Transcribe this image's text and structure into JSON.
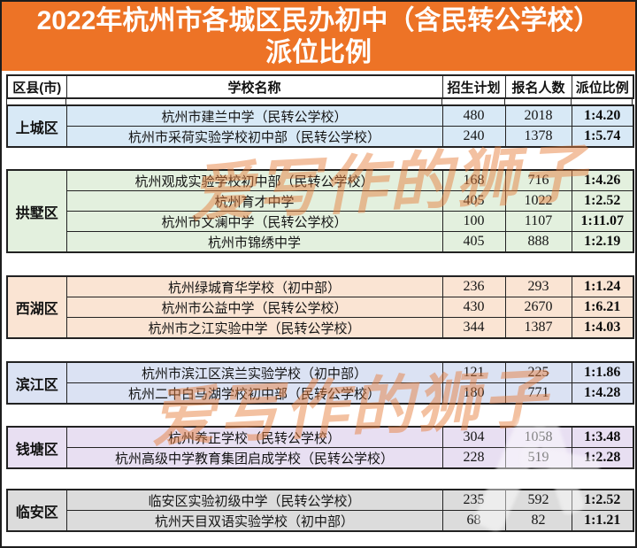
{
  "title": {
    "line1": "2022年杭州市各城区民办初中（含民转公学校）",
    "line2": "派位比例"
  },
  "colors": {
    "banner_orange": "#ED7326",
    "table_border": "#222222",
    "watermark_orange": "#E77E3C"
  },
  "watermarks": {
    "brand_text": "爱写作的狮子",
    "brand_color": "#E77E3C"
  },
  "chart_data": {
    "type": "table",
    "title": "2022年杭州市各城区民办初中（含民转公学校）派位比例",
    "columns": [
      "区县(市)",
      "学校名称",
      "招生计划",
      "报名人数",
      "派位比例"
    ],
    "sections": [
      {
        "district": "上城区",
        "row_color": "#D8E9F6",
        "rows": [
          {
            "school": "杭州市建兰中学（民转公学校）",
            "plan": 480,
            "applicants": 2018,
            "ratio": "1:4.20"
          },
          {
            "school": "杭州市采荷实验学校初中部（民转公学校）",
            "plan": 240,
            "applicants": 1378,
            "ratio": "1:5.74"
          }
        ]
      },
      {
        "district": "拱墅区",
        "row_color": "#E3F0DE",
        "rows": [
          {
            "school": "杭州观成实验学校初中部（民转公学校）",
            "plan": 168,
            "applicants": 716,
            "ratio": "1:4.26"
          },
          {
            "school": "杭州育才中学",
            "plan": 405,
            "applicants": 1022,
            "ratio": "1:2.52"
          },
          {
            "school": "杭州市文澜中学（民转公学校）",
            "plan": 100,
            "applicants": 1107,
            "ratio": "1:11.07"
          },
          {
            "school": "杭州市锦绣中学",
            "plan": 405,
            "applicants": 888,
            "ratio": "1:2.19"
          }
        ]
      },
      {
        "district": "西湖区",
        "row_color": "#FAE4D3",
        "rows": [
          {
            "school": "杭州绿城育华学校（初中部）",
            "plan": 236,
            "applicants": 293,
            "ratio": "1:1.24"
          },
          {
            "school": "杭州市公益中学（民转公学校）",
            "plan": 430,
            "applicants": 2670,
            "ratio": "1:6.21"
          },
          {
            "school": "杭州市之江实验中学（民转公学校）",
            "plan": 344,
            "applicants": 1387,
            "ratio": "1:4.03"
          }
        ]
      },
      {
        "district": "滨江区",
        "row_color": "#DBE2F3",
        "rows": [
          {
            "school": "杭州市滨江区滨兰实验学校（初中部）",
            "plan": 121,
            "applicants": 225,
            "ratio": "1:1.86"
          },
          {
            "school": "杭州二中白马湖学校初中部（民转公学校）",
            "plan": 180,
            "applicants": 771,
            "ratio": "1:4.28"
          }
        ]
      },
      {
        "district": "钱塘区",
        "row_color": "#E8DFF2",
        "rows": [
          {
            "school": "杭州养正学校（民转公学校）",
            "plan": 304,
            "applicants": 1058,
            "ratio": "1:3.48"
          },
          {
            "school": "杭州高级中学教育集团启成学校（民转公学校）",
            "plan": 228,
            "applicants": 519,
            "ratio": "1:2.28"
          }
        ]
      },
      {
        "district": "临安区",
        "row_color": "#DCDCDC",
        "rows": [
          {
            "school": "临安区实验初级中学（民转公学校）",
            "plan": 235,
            "applicants": 592,
            "ratio": "1:2.52"
          },
          {
            "school": "杭州天目双语实验学校（初中部）",
            "plan": 68,
            "applicants": 82,
            "ratio": "1:1.21"
          }
        ]
      }
    ]
  }
}
